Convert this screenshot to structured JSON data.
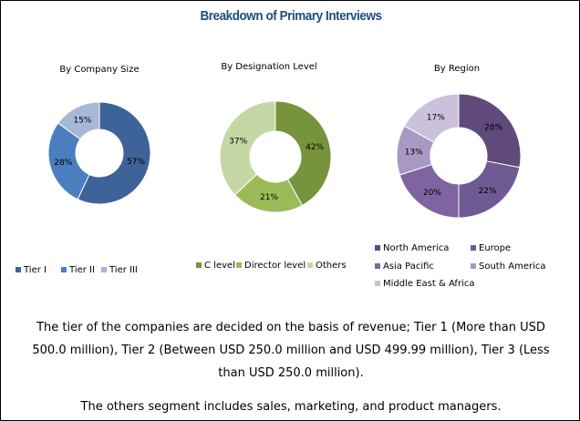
{
  "title": "Breakdown of Primary Interviews",
  "chart_data": [
    {
      "type": "pie",
      "donut": true,
      "title": "By Company Size",
      "categories": [
        "Tier I",
        "Tier II",
        "Tier III"
      ],
      "values": [
        57,
        28,
        15
      ],
      "labels": [
        "57%",
        "28%",
        "15%"
      ],
      "colors": [
        "#3d6399",
        "#4a7ebf",
        "#a5b8d8"
      ],
      "legend": "bottom"
    },
    {
      "type": "pie",
      "donut": true,
      "title": "By Designation Level",
      "categories": [
        "C level",
        "Director level",
        "Others"
      ],
      "values": [
        42,
        21,
        37
      ],
      "labels": [
        "42%",
        "21%",
        "37%"
      ],
      "colors": [
        "#77933c",
        "#9bbb59",
        "#c4d7a4"
      ],
      "legend": "bottom"
    },
    {
      "type": "pie",
      "donut": true,
      "title": "By Region",
      "categories": [
        "North America",
        "Europe",
        "Asia Pacific",
        "South America",
        "Middle East & Africa"
      ],
      "values": [
        28,
        22,
        20,
        13,
        17
      ],
      "labels": [
        "28%",
        "22%",
        "20%",
        "13%",
        "17%"
      ],
      "colors": [
        "#5f4a7b",
        "#6f5a93",
        "#8064a2",
        "#a899c4",
        "#ccc1da"
      ],
      "legend": "bottom"
    }
  ],
  "notes": [
    "The tier of the companies are decided on the basis of revenue; Tier 1 (More than USD 500.0 million), Tier 2 (Between USD 250.0 million  and USD 499.99 million), Tier 3 (Less than USD 250.0 million).",
    "The others segment includes sales, marketing, and product managers."
  ]
}
